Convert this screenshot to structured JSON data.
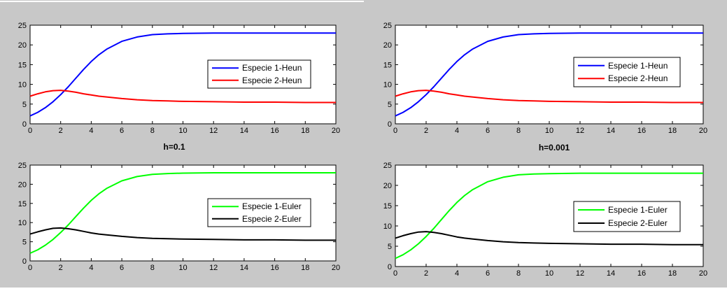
{
  "panels": [
    {
      "title": "h=0.1",
      "chart_data": [
        {
          "type": "line",
          "xlim": [
            0,
            20
          ],
          "ylim": [
            0,
            25
          ],
          "xticks": [
            0,
            2,
            4,
            6,
            8,
            10,
            12,
            14,
            16,
            18,
            20
          ],
          "yticks": [
            0,
            5,
            10,
            15,
            20,
            25
          ],
          "grid": false,
          "legend": "right",
          "x": [
            0,
            0.5,
            1,
            1.5,
            2,
            2.5,
            3,
            3.5,
            4,
            4.5,
            5,
            6,
            7,
            8,
            9,
            10,
            12,
            14,
            16,
            18,
            20
          ],
          "series": [
            {
              "name": "Especie 1-Heun",
              "color": "#0000ff",
              "values": [
                2.0,
                2.9,
                4.1,
                5.6,
                7.4,
                9.4,
                11.6,
                13.8,
                15.8,
                17.5,
                18.9,
                20.9,
                22.0,
                22.6,
                22.8,
                22.9,
                23.0,
                23.0,
                23.0,
                23.0,
                23.0
              ]
            },
            {
              "name": "Especie 2-Heun",
              "color": "#ff0000",
              "values": [
                7.0,
                7.6,
                8.1,
                8.4,
                8.5,
                8.3,
                8.0,
                7.6,
                7.3,
                7.0,
                6.8,
                6.4,
                6.1,
                5.9,
                5.8,
                5.7,
                5.6,
                5.5,
                5.5,
                5.4,
                5.4
              ]
            }
          ]
        },
        {
          "type": "line",
          "xlim": [
            0,
            20
          ],
          "ylim": [
            0,
            25
          ],
          "xticks": [
            0,
            2,
            4,
            6,
            8,
            10,
            12,
            14,
            16,
            18,
            20
          ],
          "yticks": [
            0,
            5,
            10,
            15,
            20,
            25
          ],
          "grid": false,
          "legend": "right",
          "x": [
            0,
            0.5,
            1,
            1.5,
            2,
            2.5,
            3,
            3.5,
            4,
            4.5,
            5,
            6,
            7,
            8,
            9,
            10,
            12,
            14,
            16,
            18,
            20
          ],
          "series": [
            {
              "name": "Especie 1-Euler",
              "color": "#00ff00",
              "values": [
                2.0,
                2.9,
                4.1,
                5.6,
                7.4,
                9.4,
                11.6,
                13.8,
                15.8,
                17.5,
                18.9,
                20.9,
                22.0,
                22.6,
                22.8,
                22.9,
                23.0,
                23.0,
                23.0,
                23.0,
                23.0
              ]
            },
            {
              "name": "Especie 2-Euler",
              "color": "#000000",
              "values": [
                7.0,
                7.6,
                8.1,
                8.5,
                8.6,
                8.4,
                8.1,
                7.7,
                7.3,
                7.0,
                6.8,
                6.4,
                6.1,
                5.9,
                5.8,
                5.7,
                5.6,
                5.5,
                5.5,
                5.4,
                5.4
              ]
            }
          ]
        }
      ]
    },
    {
      "title": "h=0.001",
      "chart_data": [
        {
          "type": "line",
          "xlim": [
            0,
            20
          ],
          "ylim": [
            0,
            25
          ],
          "xticks": [
            0,
            2,
            4,
            6,
            8,
            10,
            12,
            14,
            16,
            18,
            20
          ],
          "yticks": [
            0,
            5,
            10,
            15,
            20,
            25
          ],
          "grid": false,
          "legend": "right",
          "x": [
            0,
            0.5,
            1,
            1.5,
            2,
            2.5,
            3,
            3.5,
            4,
            4.5,
            5,
            6,
            7,
            8,
            9,
            10,
            12,
            14,
            16,
            18,
            20
          ],
          "series": [
            {
              "name": "Especie 1-Heun",
              "color": "#0000ff",
              "values": [
                2.0,
                2.9,
                4.1,
                5.6,
                7.4,
                9.4,
                11.6,
                13.8,
                15.8,
                17.5,
                18.9,
                20.9,
                22.0,
                22.6,
                22.8,
                22.9,
                23.0,
                23.0,
                23.0,
                23.0,
                23.0
              ]
            },
            {
              "name": "Especie 2-Heun",
              "color": "#ff0000",
              "values": [
                7.0,
                7.6,
                8.1,
                8.4,
                8.5,
                8.3,
                8.0,
                7.6,
                7.3,
                7.0,
                6.8,
                6.4,
                6.1,
                5.9,
                5.8,
                5.7,
                5.6,
                5.5,
                5.5,
                5.4,
                5.4
              ]
            }
          ]
        },
        {
          "type": "line",
          "xlim": [
            0,
            20
          ],
          "ylim": [
            0,
            25
          ],
          "xticks": [
            0,
            2,
            4,
            6,
            8,
            10,
            12,
            14,
            16,
            18,
            20
          ],
          "yticks": [
            0,
            5,
            10,
            15,
            20,
            25
          ],
          "grid": false,
          "legend": "right",
          "x": [
            0,
            0.5,
            1,
            1.5,
            2,
            2.5,
            3,
            3.5,
            4,
            4.5,
            5,
            6,
            7,
            8,
            9,
            10,
            12,
            14,
            16,
            18,
            20
          ],
          "series": [
            {
              "name": "Especie 1-Euler",
              "color": "#00ff00",
              "values": [
                2.0,
                2.9,
                4.1,
                5.6,
                7.4,
                9.4,
                11.6,
                13.8,
                15.8,
                17.5,
                18.9,
                20.9,
                22.0,
                22.6,
                22.8,
                22.9,
                23.0,
                23.0,
                23.0,
                23.0,
                23.0
              ]
            },
            {
              "name": "Especie 2-Euler",
              "color": "#000000",
              "values": [
                7.0,
                7.6,
                8.1,
                8.5,
                8.6,
                8.4,
                8.1,
                7.7,
                7.3,
                7.0,
                6.8,
                6.4,
                6.1,
                5.9,
                5.8,
                5.7,
                5.6,
                5.5,
                5.5,
                5.4,
                5.4
              ]
            }
          ]
        }
      ]
    }
  ],
  "colors": {
    "figure_background": "#c8c8c8",
    "axes_background": "#ffffff",
    "axis_color": "#000000"
  }
}
